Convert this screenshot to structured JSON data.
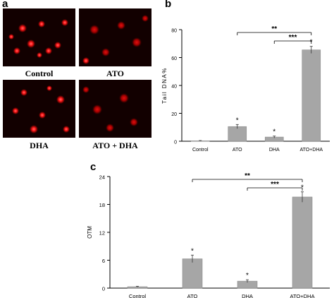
{
  "figure": {
    "panel_labels": {
      "a": "a",
      "b": "b",
      "c": "c"
    },
    "micrographs": [
      {
        "label": "Control",
        "comet_intensity": "low"
      },
      {
        "label": "ATO",
        "comet_intensity": "moderate"
      },
      {
        "label": "DHA",
        "comet_intensity": "low"
      },
      {
        "label": "ATO + DHA",
        "comet_intensity": "high"
      }
    ]
  },
  "colors": {
    "bar": "#a6a6a6",
    "bar_edge": "#8c8c8c",
    "micro_background": "#120000",
    "comet": "#ff2020"
  },
  "chart_data": [
    {
      "type": "bar",
      "panel": "b",
      "categories": [
        "Control",
        "ATO",
        "DHA",
        "ATO+DHA"
      ],
      "values": [
        0.3,
        10.5,
        3.0,
        65.5
      ],
      "errors": [
        0.2,
        1.5,
        0.7,
        2.5
      ],
      "markers": [
        "",
        "*",
        "*",
        "*"
      ],
      "ylabel": "Tail DNA%",
      "ylim": [
        0,
        80
      ],
      "yticks": [
        0,
        20,
        40,
        60,
        80
      ],
      "significance": [
        {
          "from": 1,
          "to": 3,
          "label": "**"
        },
        {
          "from": 2,
          "to": 3,
          "label": "***"
        }
      ],
      "grid": false
    },
    {
      "type": "bar",
      "panel": "c",
      "categories": [
        "Control",
        "ATO",
        "DHA",
        "ATO+DHA"
      ],
      "values": [
        0.3,
        6.3,
        1.5,
        19.6
      ],
      "errors": [
        0.1,
        0.8,
        0.3,
        1.1
      ],
      "markers": [
        "",
        "*",
        "*",
        "*"
      ],
      "ylabel": "OTM",
      "ylim": [
        0,
        24
      ],
      "yticks": [
        0,
        6,
        12,
        18,
        24
      ],
      "significance": [
        {
          "from": 1,
          "to": 3,
          "label": "**"
        },
        {
          "from": 2,
          "to": 3,
          "label": "***"
        }
      ],
      "grid": false
    }
  ]
}
